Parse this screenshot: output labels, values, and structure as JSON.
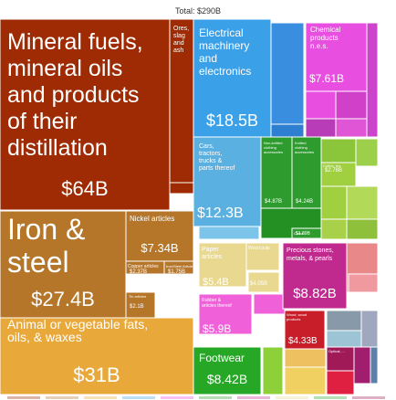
{
  "header": {
    "total": "Total: $290B"
  },
  "chart_data": {
    "type": "treemap",
    "total_label": "Total: $290B",
    "unit": "USD billions",
    "tiles": [
      {
        "name": "Mineral fuels, mineral oils and products of their distillation",
        "value_label": "$64B",
        "value": 64,
        "color": "#9e2b03"
      },
      {
        "name": "Ores, slag and ash",
        "value_label": "",
        "value": null,
        "color": "#9e2b03"
      },
      {
        "name": "Iron & steel",
        "value_label": "$27.4B",
        "value": 27.4,
        "color": "#b5762a"
      },
      {
        "name": "Nickel articles",
        "value_label": "$7.34B",
        "value": 7.34,
        "color": "#b5762a"
      },
      {
        "name": "Copper articles",
        "value_label": "$2.37B",
        "value": 2.37,
        "color": "#b5762a"
      },
      {
        "name": "Iron/Steel Articles",
        "value_label": "$1.75B",
        "value": 1.75,
        "color": "#b5762a"
      },
      {
        "name": "Tin articles",
        "value_label": "$2.1B",
        "value": 2.1,
        "color": "#b5762a"
      },
      {
        "name": "Animal or vegetable fats, oils, & waxes",
        "value_label": "$31B",
        "value": 31,
        "color": "#e8a83a"
      },
      {
        "name": "Electrical machinery and electronics",
        "value_label": "$18.5B",
        "value": 18.5,
        "color": "#3aa0e8"
      },
      {
        "name": "Cars, tractors, trucks & parts thereof",
        "value_label": "$12.3B",
        "value": 12.3,
        "color": "#5ab0e0"
      },
      {
        "name": "Chemical products n.e.s.",
        "value_label": "$7.61B",
        "value": 7.61,
        "color": "#e84ee0"
      },
      {
        "name": "Non-knit clothing accessories",
        "value_label": "$4.87B",
        "value": 4.87,
        "color": "#2e9b2e"
      },
      {
        "name": "Knitted clothing accessories",
        "value_label": "$4.24B",
        "value": 4.24,
        "color": "#2e9b2e"
      },
      {
        "name": "Precious stones, metals, & pearls",
        "value_label": "$8.82B",
        "value": 8.82,
        "color": "#c02a8e"
      },
      {
        "name": "Paper articles",
        "value_label": "$5.4B",
        "value": 5.4,
        "color": "#e8d890"
      },
      {
        "name": "Wood pulp",
        "value_label": "$4.05B",
        "value": 4.05,
        "color": "#e8d890"
      },
      {
        "name": "Rubber & articles thereof",
        "value_label": "$5.9B",
        "value": 5.9,
        "color": "#f060d8"
      },
      {
        "name": "Footwear",
        "value_label": "$8.42B",
        "value": 8.42,
        "color": "#26a826"
      },
      {
        "name": "Wood, wood products",
        "value_label": "$4.33B",
        "value": 4.33,
        "color": "#c81e2a"
      },
      {
        "name": "Coffee, tea",
        "value_label": "$2.78B",
        "value": 2.78,
        "color": "#a0d040"
      },
      {
        "name": "Cotton",
        "value_label": "$1.89B",
        "value": 1.89,
        "color": "#2e9b2e"
      },
      {
        "name": "Optical, ...",
        "value_label": "",
        "value": null,
        "color": "#a01a58"
      }
    ]
  }
}
